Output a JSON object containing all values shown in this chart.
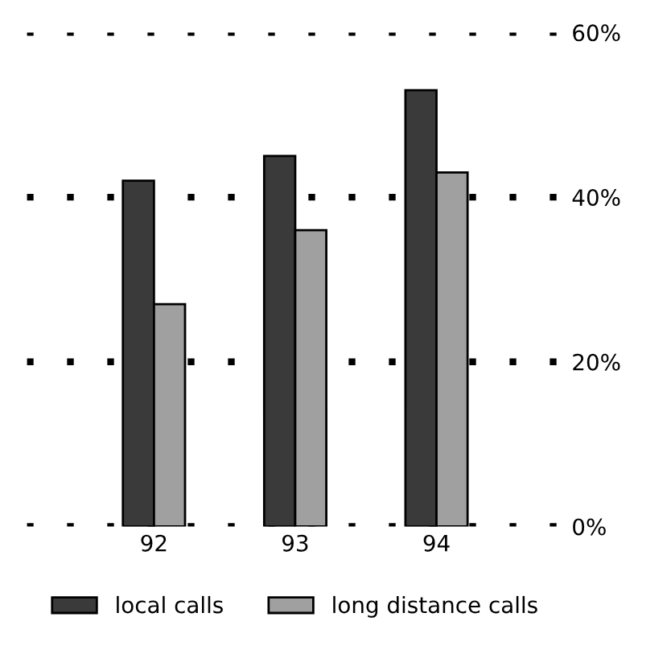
{
  "chart_data": {
    "type": "bar",
    "categories": [
      "92",
      "93",
      "94"
    ],
    "series": [
      {
        "name": "local calls",
        "color": "#3a3a3a",
        "values": [
          42,
          45,
          53
        ]
      },
      {
        "name": "long distance calls",
        "color": "#a0a0a0",
        "values": [
          27,
          36,
          43
        ]
      }
    ],
    "ylim": [
      0,
      60
    ],
    "yticks": [
      {
        "value": 0,
        "label": "0%"
      },
      {
        "value": 20,
        "label": "20%"
      },
      {
        "value": 40,
        "label": "40%"
      },
      {
        "value": 60,
        "label": "60%"
      }
    ],
    "grid": "y",
    "legend": "bottom"
  }
}
